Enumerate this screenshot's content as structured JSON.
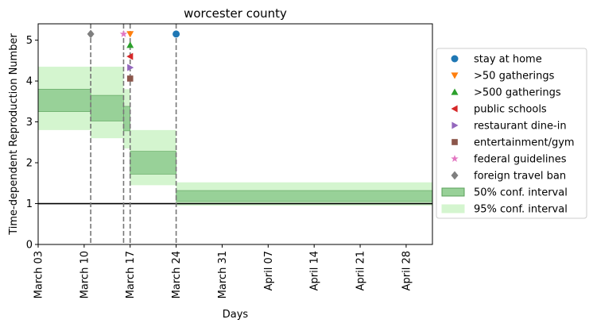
{
  "chart_data": {
    "type": "step-interval",
    "title": "worcester county",
    "xlabel": "Days",
    "ylabel": "Time-dependent Reproduction Number",
    "x_unit": "date (2020)",
    "xlim": [
      "2020-03-03",
      "2020-05-02"
    ],
    "ylim": [
      0,
      5.4
    ],
    "x_ticks": [
      {
        "date": "2020-03-03",
        "label": "March 03"
      },
      {
        "date": "2020-03-10",
        "label": "March 10"
      },
      {
        "date": "2020-03-17",
        "label": "March 17"
      },
      {
        "date": "2020-03-24",
        "label": "March 24"
      },
      {
        "date": "2020-03-31",
        "label": "March 31"
      },
      {
        "date": "2020-04-07",
        "label": "April 07"
      },
      {
        "date": "2020-04-14",
        "label": "April 14"
      },
      {
        "date": "2020-04-21",
        "label": "April 21"
      },
      {
        "date": "2020-04-28",
        "label": "April 28"
      }
    ],
    "y_ticks": [
      0,
      1,
      2,
      3,
      4,
      5
    ],
    "reference_line": {
      "y": 1,
      "color": "#000000"
    },
    "grid": false,
    "legend_placement": "outside right",
    "intervals": [
      {
        "start": "2020-03-03",
        "end": "2020-03-11",
        "ci50": [
          3.25,
          3.8
        ],
        "ci95": [
          2.8,
          4.35
        ]
      },
      {
        "start": "2020-03-11",
        "end": "2020-03-16",
        "ci50": [
          3.02,
          3.65
        ],
        "ci95": [
          2.6,
          4.35
        ]
      },
      {
        "start": "2020-03-16",
        "end": "2020-03-17",
        "ci50": [
          2.78,
          3.38
        ],
        "ci95": [
          2.35,
          3.8
        ]
      },
      {
        "start": "2020-03-17",
        "end": "2020-03-24",
        "ci50": [
          1.72,
          2.28
        ],
        "ci95": [
          1.45,
          2.8
        ]
      },
      {
        "start": "2020-03-24",
        "end": "2020-05-02",
        "ci50": [
          1.05,
          1.32
        ],
        "ci95": [
          0.95,
          1.52
        ]
      }
    ],
    "events": [
      {
        "key": "stay_home",
        "label": "stay at home",
        "date": "2020-03-24",
        "marker": "circle",
        "color": "#1f77b4",
        "y": 5.15
      },
      {
        "key": "gatherings50",
        "label": ">50 gatherings",
        "date": "2020-03-17",
        "marker": "triangle-down",
        "color": "#ff7f0e",
        "y": 5.15
      },
      {
        "key": "gatherings500",
        "label": ">500 gatherings",
        "date": "2020-03-17",
        "marker": "triangle-up",
        "color": "#2ca02c",
        "y": 4.88
      },
      {
        "key": "schools",
        "label": "public schools",
        "date": "2020-03-17",
        "marker": "triangle-left",
        "color": "#d62728",
        "y": 4.6
      },
      {
        "key": "restaurant",
        "label": "restaurant dine-in",
        "date": "2020-03-17",
        "marker": "triangle-right",
        "color": "#9467bd",
        "y": 4.33
      },
      {
        "key": "entertainment",
        "label": "entertainment/gym",
        "date": "2020-03-17",
        "marker": "square",
        "color": "#8c564b",
        "y": 4.06
      },
      {
        "key": "federal",
        "label": "federal guidelines",
        "date": "2020-03-16",
        "marker": "star",
        "color": "#e377c2",
        "y": 5.15
      },
      {
        "key": "travel",
        "label": "foreign travel ban",
        "date": "2020-03-11",
        "marker": "diamond",
        "color": "#7f7f7f",
        "y": 5.15
      }
    ],
    "event_lines": [
      "2020-03-11",
      "2020-03-16",
      "2020-03-17",
      "2020-03-24"
    ],
    "legend": [
      {
        "label": "stay at home",
        "marker": "circle",
        "color": "#1f77b4"
      },
      {
        "label": ">50 gatherings",
        "marker": "triangle-down",
        "color": "#ff7f0e"
      },
      {
        "label": ">500 gatherings",
        "marker": "triangle-up",
        "color": "#2ca02c"
      },
      {
        "label": "public schools",
        "marker": "triangle-left",
        "color": "#d62728"
      },
      {
        "label": "restaurant dine-in",
        "marker": "triangle-right",
        "color": "#9467bd"
      },
      {
        "label": "entertainment/gym",
        "marker": "square",
        "color": "#8c564b"
      },
      {
        "label": "federal guidelines",
        "marker": "star",
        "color": "#e377c2"
      },
      {
        "label": "foreign travel ban",
        "marker": "diamond",
        "color": "#7f7f7f"
      },
      {
        "label": "50% conf. interval",
        "marker": "patch",
        "color": "#98d198",
        "edge": "#5aa05a"
      },
      {
        "label": "95% conf. interval",
        "marker": "patch",
        "color": "#d4f5cf",
        "edge": "#d4f5cf"
      }
    ],
    "colors": {
      "ci50_fill": "#98d198",
      "ci50_edge": "#5aa05a",
      "ci95_fill": "#d4f5cf",
      "event_line": "#777777"
    }
  }
}
